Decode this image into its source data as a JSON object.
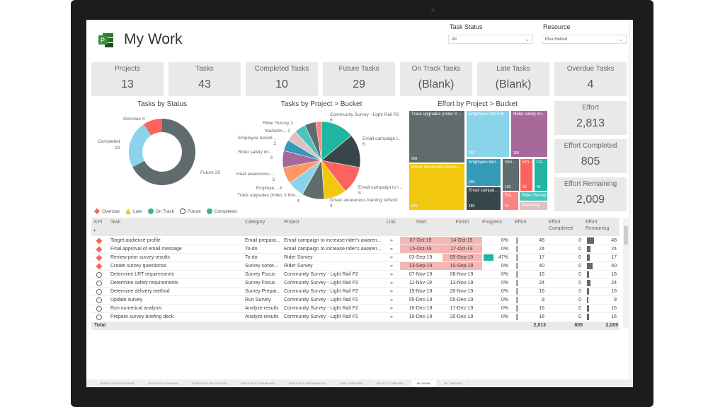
{
  "header": {
    "title": "My Work",
    "app_icon": "project-logo-icon"
  },
  "filters": {
    "task_status": {
      "label": "Task Status",
      "value": "All"
    },
    "resource": {
      "label": "Resource",
      "value": "Elva Hebert"
    }
  },
  "kpis": [
    {
      "label": "Projects",
      "value": "13"
    },
    {
      "label": "Tasks",
      "value": "43"
    },
    {
      "label": "Completed Tasks",
      "value": "10"
    },
    {
      "label": "Future Tasks",
      "value": "29"
    },
    {
      "label": "On Track Tasks",
      "value": "(Blank)"
    },
    {
      "label": "Late Tasks",
      "value": "(Blank)"
    },
    {
      "label": "Overdue Tasks",
      "value": "4"
    }
  ],
  "effort_cards": [
    {
      "label": "Effort",
      "value": "2,813"
    },
    {
      "label": "Effort Completed",
      "value": "805"
    },
    {
      "label": "Effort Remaining",
      "value": "2,009"
    }
  ],
  "chart_data": [
    {
      "type": "pie",
      "variant": "donut",
      "title": "Tasks by Status",
      "slices": [
        {
          "name": "Future",
          "value": 29,
          "color": "#5f6b6d"
        },
        {
          "name": "Completed",
          "value": 10,
          "color": "#8ad4eb"
        },
        {
          "name": "Overdue",
          "value": 4,
          "color": "#fd625e"
        }
      ],
      "labels": {
        "overdue": "Overdue 4",
        "completed": "Completed",
        "completed_v": "10",
        "future": "Future 29"
      },
      "legend": [
        {
          "name": "Overdue",
          "color": "#fd625e",
          "shape": "diamond"
        },
        {
          "name": "Late",
          "color": "#f2c80f",
          "shape": "triangle"
        },
        {
          "name": "On Track",
          "color": "#3fb27f",
          "shape": "circle"
        },
        {
          "name": "Future",
          "color": "#ffffff",
          "shape": "circle-outline"
        },
        {
          "name": "Completed",
          "color": "#3fb27f",
          "shape": "check-circle"
        }
      ],
      "legend_position": "bottom"
    },
    {
      "type": "pie",
      "title": "Tasks by Project > Bucket",
      "slices": [
        {
          "name": "Community Survey - Light Rail P2",
          "value": 6,
          "color": "#1fb5a0"
        },
        {
          "name": "Email campaign t...",
          "value": 6,
          "color": "#374649"
        },
        {
          "name": "Email campaign to i...",
          "value": 5,
          "color": "#fd625e"
        },
        {
          "name": "Driver awareness training refresh",
          "value": 4,
          "color": "#f2c80f"
        },
        {
          "name": "Track upgrades (miles 3 thru...",
          "value": 4,
          "color": "#5f6b6d"
        },
        {
          "name": "Employe...",
          "value": 3,
          "color": "#8ad4eb"
        },
        {
          "name": "Heat awareness ...",
          "value": 3,
          "color": "#fe9666"
        },
        {
          "name": "Rider safety im...",
          "value": 3,
          "color": "#a66999"
        },
        {
          "name": "Employee benefi...",
          "value": 2,
          "color": "#3599b8"
        },
        {
          "name": "Marketin...",
          "value": 2,
          "color": "#dfbfbf"
        },
        {
          "name": "Rider Survey",
          "value": 2,
          "color": "#4ac5bb"
        },
        {
          "name": "",
          "value": 2,
          "color": "#5f6b6d"
        },
        {
          "name": "",
          "value": 1,
          "color": "#fb8281"
        }
      ]
    },
    {
      "type": "treemap",
      "title": "Effort by Project > Bucket",
      "items": [
        {
          "name": "Track upgrades (miles 3 ...",
          "value": "608",
          "color": "#5f6b6d"
        },
        {
          "name": "Driver awareness trainin...",
          "value": "542",
          "color": "#f2c80f"
        },
        {
          "name": "Employee Job Fair",
          "value": "432",
          "color": "#8ad4eb"
        },
        {
          "name": "Rider safety im...",
          "value": "360",
          "color": "#a66999"
        },
        {
          "name": "Employee ben...",
          "value": "200",
          "color": "#3599b8"
        },
        {
          "name": "Email campai...",
          "value": "180",
          "color": "#374649"
        },
        {
          "name": "Ven...",
          "value": "120",
          "color": "#5f6b6d"
        },
        {
          "name": "Em...",
          "value": "96",
          "color": "#fd625e"
        },
        {
          "name": "Co...",
          "value": "96",
          "color": "#1fb5a0"
        },
        {
          "name": "Sta...",
          "value": "64",
          "color": "#fb8281"
        },
        {
          "name": "Rider Survey",
          "value": "",
          "color": "#4ac5bb"
        },
        {
          "name": "Marketing ...",
          "value": "",
          "color": "#dfbfbf"
        }
      ]
    }
  ],
  "table": {
    "columns": [
      "KPI",
      "Task",
      "Category",
      "Project",
      "Link",
      "Start",
      "Finish",
      "Progress",
      "Effort",
      "Effort Completed",
      "Effort Remaining"
    ],
    "rows": [
      {
        "kpi": "overdue",
        "task": "Target audience profile",
        "category": "Email prepara...",
        "project": "Email campaign to increase rider's awaren...",
        "start": "07-Oct-19",
        "finish": "14-Oct-19",
        "progress": "0%",
        "effort": "48",
        "completed": "0",
        "remaining": "48",
        "late_start": true,
        "late_finish": true
      },
      {
        "kpi": "overdue",
        "task": "Final approval of email message",
        "category": "To-do",
        "project": "Email campaign to increase rider's awaren...",
        "start": "15-Oct-19",
        "finish": "17-Oct-19",
        "progress": "0%",
        "effort": "24",
        "completed": "0",
        "remaining": "24",
        "late_start": true,
        "late_finish": true
      },
      {
        "kpi": "overdue",
        "task": "Review prior survey results",
        "category": "To-do",
        "project": "Rider Survey",
        "start": "03-Sep-19",
        "finish": "05-Sep-19",
        "progress": "47%",
        "effort": "17",
        "completed": "0",
        "remaining": "17",
        "late_start": false,
        "late_finish": true
      },
      {
        "kpi": "overdue",
        "task": "Create survey questionss",
        "category": "Survey conte...",
        "project": "Rider Survey",
        "start": "13-Sep-19",
        "finish": "19-Sep-19",
        "progress": "0%",
        "effort": "40",
        "completed": "0",
        "remaining": "40",
        "late_start": true,
        "late_finish": true
      },
      {
        "kpi": "future",
        "task": "Determine LRT requirements",
        "category": "Survey Focus",
        "project": "Community Survey - Light Rail P2",
        "start": "07-Nov-19",
        "finish": "08-Nov-19",
        "progress": "0%",
        "effort": "16",
        "completed": "0",
        "remaining": "16"
      },
      {
        "kpi": "future",
        "task": "Determine safety requirements",
        "category": "Survey Focus",
        "project": "Community Survey - Light Rail P2",
        "start": "11-Nov-19",
        "finish": "13-Nov-19",
        "progress": "0%",
        "effort": "24",
        "completed": "0",
        "remaining": "24"
      },
      {
        "kpi": "future",
        "task": "Determine delivery method",
        "category": "Survey Prepar...",
        "project": "Community Survey - Light Rail P2",
        "start": "19-Nov-19",
        "finish": "20-Nov-19",
        "progress": "0%",
        "effort": "16",
        "completed": "0",
        "remaining": "16"
      },
      {
        "kpi": "future",
        "task": "Update survey",
        "category": "Run Survey",
        "project": "Community Survey - Light Rail P2",
        "start": "05-Dec-19",
        "finish": "05-Dec-19",
        "progress": "0%",
        "effort": "8",
        "completed": "0",
        "remaining": "8"
      },
      {
        "kpi": "future",
        "task": "Run numerical analysis",
        "category": "Analyze results",
        "project": "Community Survey - Light Rail P2",
        "start": "16-Dec-19",
        "finish": "17-Dec-19",
        "progress": "0%",
        "effort": "16",
        "completed": "0",
        "remaining": "16"
      },
      {
        "kpi": "future",
        "task": "Prepare survey briefing deck",
        "category": "Analyze results",
        "project": "Community Survey - Light Rail P2",
        "start": "19-Dec-19",
        "finish": "20-Dec-19",
        "progress": "0%",
        "effort": "16",
        "completed": "0",
        "remaining": "16"
      }
    ],
    "total": {
      "label": "Total",
      "effort": "2,813",
      "completed": "805",
      "remaining": "2,009"
    }
  },
  "tabs": [
    {
      "label": "PORTFOLIO DASHBOARD"
    },
    {
      "label": "PORTFOLIO TIMELINE"
    },
    {
      "label": "PORTFOLIO MILESTONES"
    },
    {
      "label": "RESOURCE DASHBOARD"
    },
    {
      "label": "RESOURCE ASSIGNMENTS"
    },
    {
      "label": "TASK OVERVIEW"
    },
    {
      "label": "PROJECT TIMELINE"
    },
    {
      "label": "MY WORK",
      "active": true
    },
    {
      "label": "MY TIMELINE"
    }
  ],
  "colors": {
    "overdue": "#fd625e",
    "late_cell": "#f4b7b5",
    "progress": "#1fb5a0",
    "bar": "#5f6b6d"
  }
}
